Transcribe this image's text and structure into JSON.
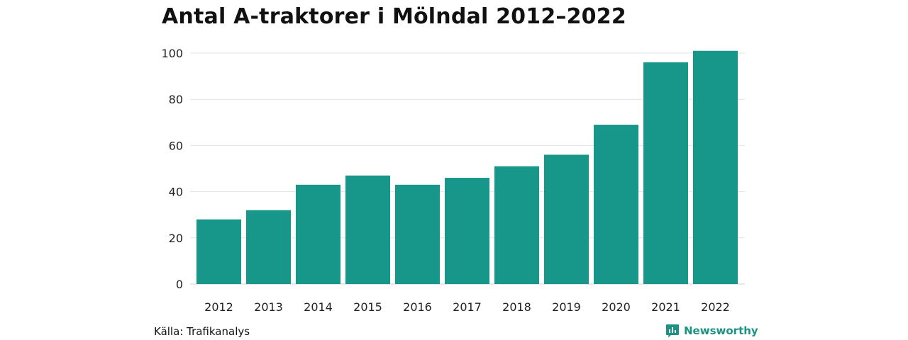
{
  "brand": {
    "name": "Newsworthy",
    "color": "#1a9385"
  },
  "source": "Källa: Trafikanalys",
  "chart_data": {
    "type": "bar",
    "title": "Antal A-traktorer i Mölndal 2012–2022",
    "xlabel": "",
    "ylabel": "",
    "categories": [
      "2012",
      "2013",
      "2014",
      "2015",
      "2016",
      "2017",
      "2018",
      "2019",
      "2020",
      "2021",
      "2022"
    ],
    "values": [
      28,
      32,
      43,
      47,
      43,
      46,
      51,
      56,
      69,
      96,
      101
    ],
    "ylim": [
      0,
      100
    ],
    "yticks": [
      0,
      20,
      40,
      60,
      80,
      100
    ],
    "grid": true,
    "legend": "none",
    "bar_color": "#16978a"
  }
}
